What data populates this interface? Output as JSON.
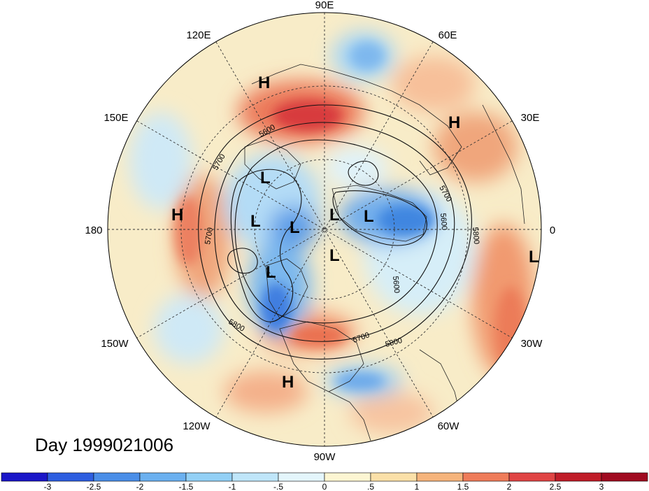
{
  "map": {
    "projection": "north-polar-stereographic",
    "longitude_labels": {
      "lon_90E": "90E",
      "lon_120E": "120E",
      "lon_60E": "60E",
      "lon_150E": "150E",
      "lon_30E": "30E",
      "lon_180": "180",
      "lon_0": "0",
      "lon_150W": "150W",
      "lon_30W": "30W",
      "lon_120W": "120W",
      "lon_60W": "60W",
      "lon_90W": "90W"
    },
    "pressure_centers": {
      "h1": "H",
      "h2": "H",
      "h3": "H",
      "h4": "H",
      "l1": "L",
      "l2": "L",
      "l3": "L",
      "l4": "L",
      "l5": "L",
      "l6": "L",
      "l7": "L",
      "l8": "L"
    },
    "contour_labels": {
      "c1": "5600",
      "c2": "5700",
      "c3": "5700",
      "c4": "5700",
      "c5": "5600",
      "c6": "5800",
      "c7": "5600",
      "c8": "5800",
      "c9": "5700",
      "c10": "5800"
    },
    "date_label": "Day 1999021006"
  },
  "colorbar": {
    "labels": [
      "-3",
      "-2.5",
      "-2",
      "-1.5",
      "-1",
      "-.5",
      "0",
      ".5",
      "1",
      "1.5",
      "2",
      "2.5",
      "3"
    ],
    "colors": [
      "#1a16c8",
      "#2d5ee0",
      "#4a8ee8",
      "#6bb0f0",
      "#93d0f6",
      "#bfe6fa",
      "#e4f6fc",
      "#fdf6d2",
      "#fbe0a8",
      "#f6b47c",
      "#ef7c5a",
      "#e04444",
      "#c01c28",
      "#a00a20"
    ]
  }
}
